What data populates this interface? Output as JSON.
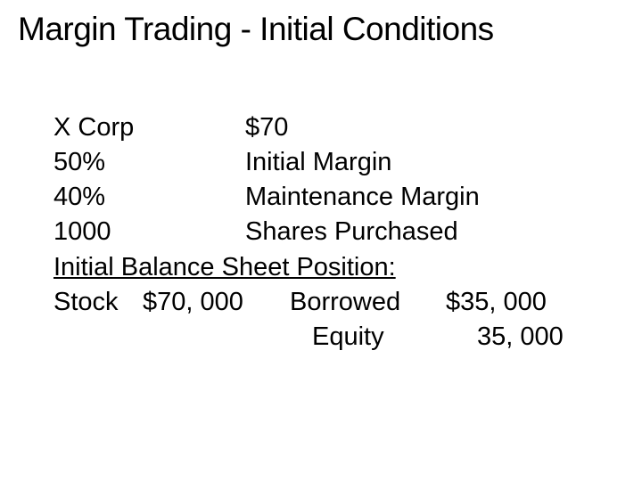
{
  "slide": {
    "title": "Margin Trading - Initial Conditions",
    "title_fontsize": 37,
    "body_fontsize": 29,
    "background_color": "#ffffff",
    "text_color": "#000000",
    "rows": [
      {
        "left": "X Corp",
        "right": "$70"
      },
      {
        "left": "50%",
        "right": "Initial Margin"
      },
      {
        "left": "40%",
        "right": "Maintenance Margin"
      },
      {
        "left": "1000",
        "right": "Shares Purchased"
      }
    ],
    "subheader": "Initial Balance Sheet Position:",
    "balance": {
      "stock_label": "Stock",
      "stock_value": "$70, 000",
      "borrowed_label": "Borrowed",
      "borrowed_value": "$35, 000",
      "equity_label": "Equity",
      "equity_value": "35, 000"
    }
  }
}
